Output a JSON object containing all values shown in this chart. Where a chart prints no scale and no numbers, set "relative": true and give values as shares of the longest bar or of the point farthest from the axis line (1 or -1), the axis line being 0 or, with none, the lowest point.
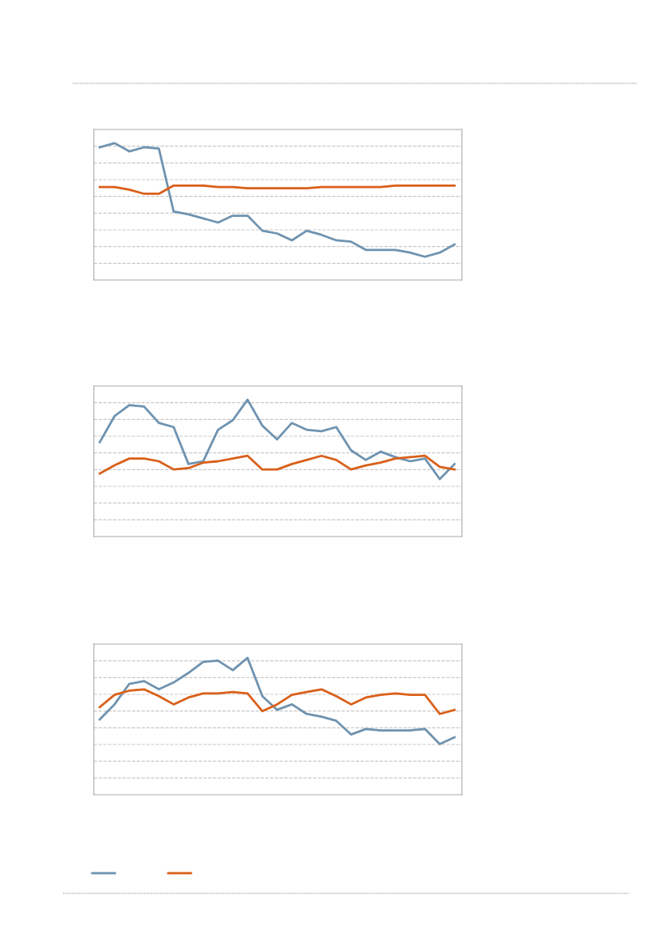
{
  "chart_data": [
    {
      "type": "line",
      "relative": true,
      "grid": "y",
      "line_style": "solid",
      "marker": "none",
      "categories": [
        null,
        null,
        null,
        null,
        null,
        null,
        null,
        null,
        null,
        null,
        null,
        null,
        null,
        null,
        null,
        null,
        null,
        null,
        null,
        null,
        null,
        null,
        null,
        null,
        null
      ],
      "series": [
        {
          "color": "#6f93b0",
          "values": [
            0.97,
            1.0,
            0.94,
            0.97,
            0.96,
            0.5,
            0.48,
            0.45,
            0.42,
            0.47,
            0.47,
            0.36,
            0.34,
            0.29,
            0.36,
            0.33,
            0.29,
            0.28,
            0.22,
            0.22,
            0.22,
            0.2,
            0.17,
            0.2,
            0.26
          ]
        },
        {
          "color": "#d9601a",
          "values": [
            0.68,
            0.68,
            0.66,
            0.63,
            0.63,
            0.69,
            0.69,
            0.69,
            0.68,
            0.68,
            0.67,
            0.67,
            0.67,
            0.67,
            0.67,
            0.68,
            0.68,
            0.68,
            0.68,
            0.68,
            0.69,
            0.69,
            0.69,
            0.69,
            0.69
          ]
        }
      ]
    },
    {
      "type": "line",
      "relative": true,
      "grid": "y",
      "line_style": "solid",
      "marker": "none",
      "categories": [
        null,
        null,
        null,
        null,
        null,
        null,
        null,
        null,
        null,
        null,
        null,
        null,
        null,
        null,
        null,
        null,
        null,
        null,
        null,
        null,
        null,
        null,
        null,
        null,
        null
      ],
      "series": [
        {
          "color": "#6f93b0",
          "values": [
            0.69,
            0.88,
            0.96,
            0.95,
            0.83,
            0.8,
            0.53,
            0.55,
            0.78,
            0.85,
            1.0,
            0.81,
            0.71,
            0.83,
            0.78,
            0.77,
            0.8,
            0.63,
            0.56,
            0.62,
            0.58,
            0.55,
            0.57,
            0.42,
            0.53
          ]
        },
        {
          "color": "#d9601a",
          "values": [
            0.46,
            0.52,
            0.57,
            0.57,
            0.55,
            0.49,
            0.5,
            0.54,
            0.55,
            0.57,
            0.59,
            0.49,
            0.49,
            0.53,
            0.56,
            0.59,
            0.56,
            0.49,
            0.52,
            0.54,
            0.57,
            0.58,
            0.59,
            0.51,
            0.49
          ]
        }
      ]
    },
    {
      "type": "line",
      "relative": true,
      "grid": "y",
      "line_style": "solid",
      "marker": "none",
      "categories": [
        null,
        null,
        null,
        null,
        null,
        null,
        null,
        null,
        null,
        null,
        null,
        null,
        null,
        null,
        null,
        null,
        null,
        null,
        null,
        null,
        null,
        null,
        null,
        null,
        null
      ],
      "series": [
        {
          "color": "#6f93b0",
          "values": [
            0.55,
            0.66,
            0.81,
            0.83,
            0.77,
            0.82,
            0.89,
            0.97,
            0.98,
            0.91,
            1.0,
            0.72,
            0.62,
            0.66,
            0.59,
            0.57,
            0.54,
            0.44,
            0.48,
            0.47,
            0.47,
            0.47,
            0.48,
            0.37,
            0.42
          ]
        },
        {
          "color": "#d9601a",
          "values": [
            0.64,
            0.73,
            0.76,
            0.77,
            0.72,
            0.66,
            0.71,
            0.74,
            0.74,
            0.75,
            0.74,
            0.61,
            0.66,
            0.73,
            0.75,
            0.77,
            0.72,
            0.66,
            0.71,
            0.73,
            0.74,
            0.73,
            0.73,
            0.59,
            0.62
          ]
        }
      ]
    }
  ]
}
